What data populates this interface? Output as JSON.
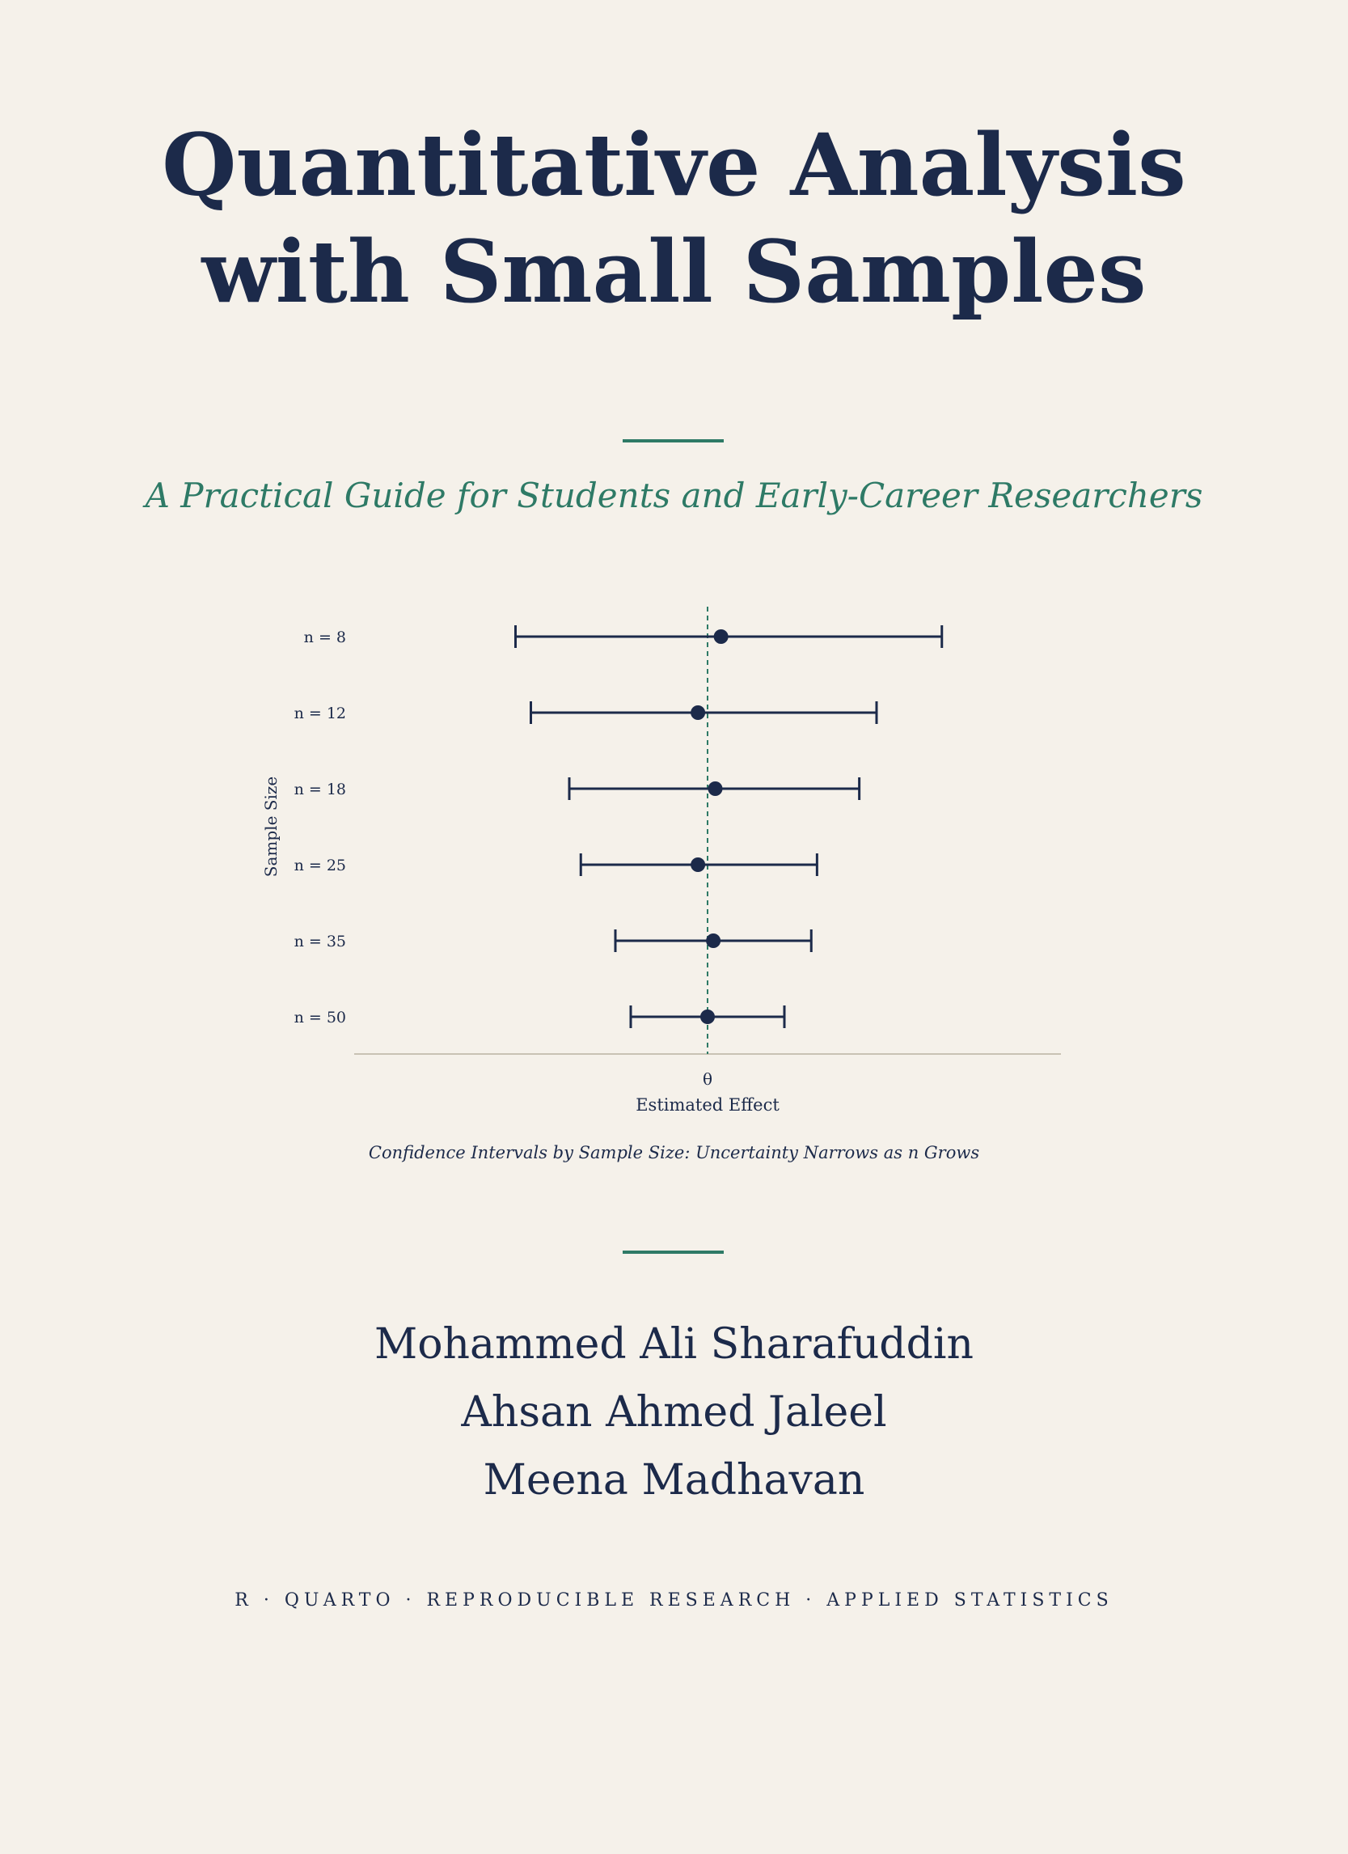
{
  "cover": {
    "title_line1": "Quantitative Analysis",
    "title_line2": "with Small Samples",
    "subtitle": "A Practical Guide for Students and Early-Career Researchers",
    "authors": [
      "Mohammed Ali Sharafuddin",
      "Ahsan Ahmed Jaleel",
      "Meena Madhavan"
    ],
    "tagline": "R · QUARTO · REPRODUCIBLE RESEARCH · APPLIED STATISTICS",
    "colors": {
      "navy": "#1c2a4a",
      "accent": "#2e7a66",
      "background": "#f5f1ea"
    }
  },
  "chart_data": {
    "type": "scatter",
    "title": "Confidence Intervals by Sample Size: Uncertainty Narrows as n Grows",
    "xlabel": "Estimated Effect",
    "ylabel": "Sample Size",
    "x_tick_label": "θ",
    "reference_line": 0,
    "grid": false,
    "rows": [
      {
        "label": "n = 8",
        "estimate": 0.07,
        "lower": -1.0,
        "upper": 1.22
      },
      {
        "label": "n = 12",
        "estimate": -0.05,
        "lower": -0.92,
        "upper": 0.88
      },
      {
        "label": "n = 18",
        "estimate": 0.04,
        "lower": -0.72,
        "upper": 0.79
      },
      {
        "label": "n = 25",
        "estimate": -0.05,
        "lower": -0.66,
        "upper": 0.57
      },
      {
        "label": "n = 35",
        "estimate": 0.03,
        "lower": -0.48,
        "upper": 0.54
      },
      {
        "label": "n = 50",
        "estimate": 0.0,
        "lower": -0.4,
        "upper": 0.4
      }
    ],
    "xlim": [
      -1.84,
      1.84
    ]
  }
}
